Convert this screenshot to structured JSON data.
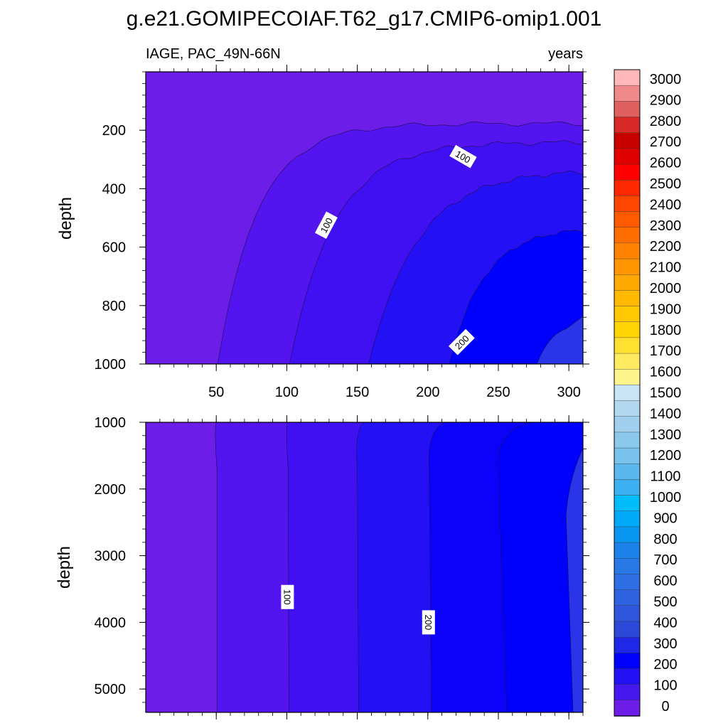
{
  "chart_data": [
    {
      "type": "contour",
      "panel": "upper",
      "title": "g.e21.GOMIPECOIAF.T62_g17.CMIP6-omip1.001",
      "left_string": "IAGE, PAC_49N-66N",
      "right_string": "years",
      "xlabel": "",
      "ylabel": "depth",
      "xlim": [
        0,
        310
      ],
      "ylim": [
        1000,
        0
      ],
      "xticks": [
        "50",
        "100",
        "150",
        "200",
        "250",
        "300"
      ],
      "yticks": [
        "200",
        "400",
        "600",
        "800",
        "1000"
      ],
      "contour_levels": [
        0,
        50,
        100,
        150,
        200,
        250
      ],
      "contour_labels": [
        "100",
        "100",
        "200"
      ]
    },
    {
      "type": "contour",
      "panel": "lower",
      "xlabel": "",
      "ylabel": "depth",
      "xlim": [
        0,
        310
      ],
      "ylim": [
        5350,
        1000
      ],
      "yticks": [
        "1000",
        "2000",
        "3000",
        "4000",
        "5000"
      ],
      "contour_levels": [
        0,
        50,
        100,
        150,
        200,
        250,
        300
      ],
      "contour_labels": [
        "100",
        "200"
      ]
    },
    {
      "type": "colorbar",
      "labels": [
        "3000",
        "2900",
        "2800",
        "2700",
        "2600",
        "2500",
        "2400",
        "2300",
        "2200",
        "2100",
        "2000",
        "1900",
        "1800",
        "1700",
        "1600",
        "1500",
        "1400",
        "1300",
        "1200",
        "1100",
        "1000",
        "900",
        "800",
        "700",
        "600",
        "500",
        "400",
        "300",
        "200",
        "100",
        "0"
      ],
      "colors": [
        "#ffb8b8",
        "#f08a8a",
        "#e06060",
        "#d82828",
        "#c80000",
        "#e00000",
        "#ff0000",
        "#ff2800",
        "#ff4600",
        "#ff5a00",
        "#ff6e00",
        "#ff8200",
        "#ff9600",
        "#ffa800",
        "#ffba00",
        "#ffc800",
        "#ffd400",
        "#ffe030",
        "#ffea60",
        "#fff48c",
        "#c8e4f6",
        "#b2d8f0",
        "#a0d0ee",
        "#8cc8ec",
        "#78c2ec",
        "#5ab8ee",
        "#3cb0f0",
        "#00bcf8",
        "#00aaf8",
        "#0896f0",
        "#1a82ea",
        "#2878e6",
        "#2e6ee4",
        "#2f62e0",
        "#3056dc",
        "#2c48d8",
        "#1e28e6",
        "#0000ff",
        "#2410f4",
        "#4418ef",
        "#6c1ee8"
      ]
    }
  ]
}
